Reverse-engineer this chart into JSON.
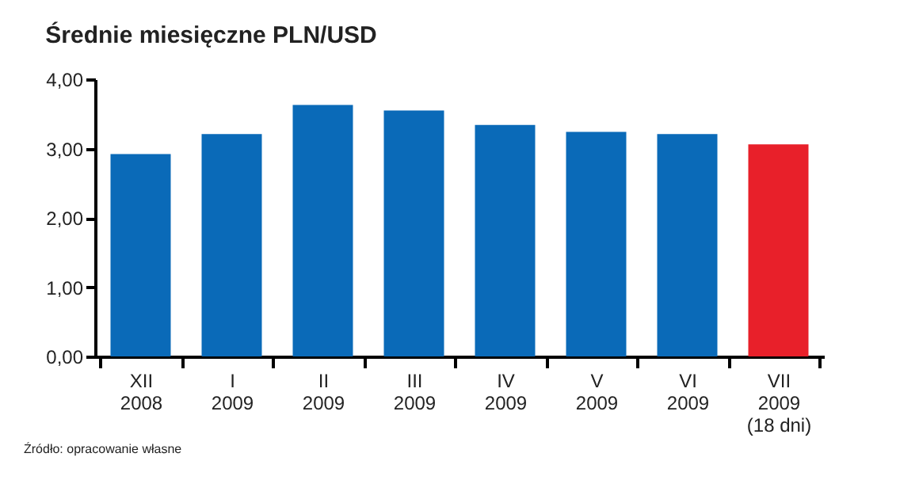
{
  "chart_data": {
    "type": "bar",
    "title": "Średnie miesięczne PLN/USD",
    "categories": [
      "XII\n2008",
      "I\n2009",
      "II\n2009",
      "III\n2009",
      "IV\n2009",
      "V\n2009",
      "VI\n2009",
      "VII\n2009\n(18 dni)"
    ],
    "values": [
      2.92,
      3.21,
      3.63,
      3.55,
      3.34,
      3.24,
      3.21,
      3.06
    ],
    "colors": [
      "#0a6ab8",
      "#0a6ab8",
      "#0a6ab8",
      "#0a6ab8",
      "#0a6ab8",
      "#0a6ab8",
      "#0a6ab8",
      "#e8202a"
    ],
    "ylim": [
      0,
      4
    ],
    "yticks": [
      {
        "value": 0,
        "label": "0,00"
      },
      {
        "value": 1,
        "label": "1,00"
      },
      {
        "value": 2,
        "label": "2,00"
      },
      {
        "value": 3,
        "label": "3,00"
      },
      {
        "value": 4,
        "label": "4,00"
      }
    ],
    "grid": false,
    "annotations": [
      "Źródło: opracowanie własne"
    ]
  }
}
